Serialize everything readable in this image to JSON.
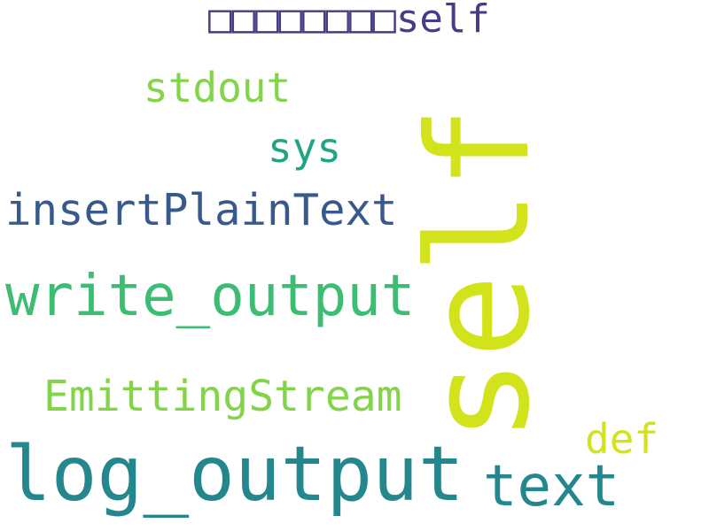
{
  "background": "#ffffff",
  "words": {
    "self": {
      "text": "self",
      "color": "#d2e21b"
    },
    "log_output": {
      "text": "log_output",
      "color": "#24878e"
    },
    "write_output": {
      "text": "write_output",
      "color": "#3dbc74"
    },
    "text": {
      "text": "text",
      "color": "#24878e"
    },
    "EmittingStream": {
      "text": "EmittingStream",
      "color": "#84d44b"
    },
    "insertPlainText": {
      "text": "insertPlainText",
      "color": "#38598c"
    },
    "cjk_self": {
      "text": "□□□□□□□□self",
      "color": "#433e85"
    },
    "stdout": {
      "text": "stdout",
      "color": "#84d44b"
    },
    "sys": {
      "text": "sys",
      "color": "#20a486"
    },
    "def": {
      "text": "def",
      "color": "#d2e21b"
    }
  }
}
